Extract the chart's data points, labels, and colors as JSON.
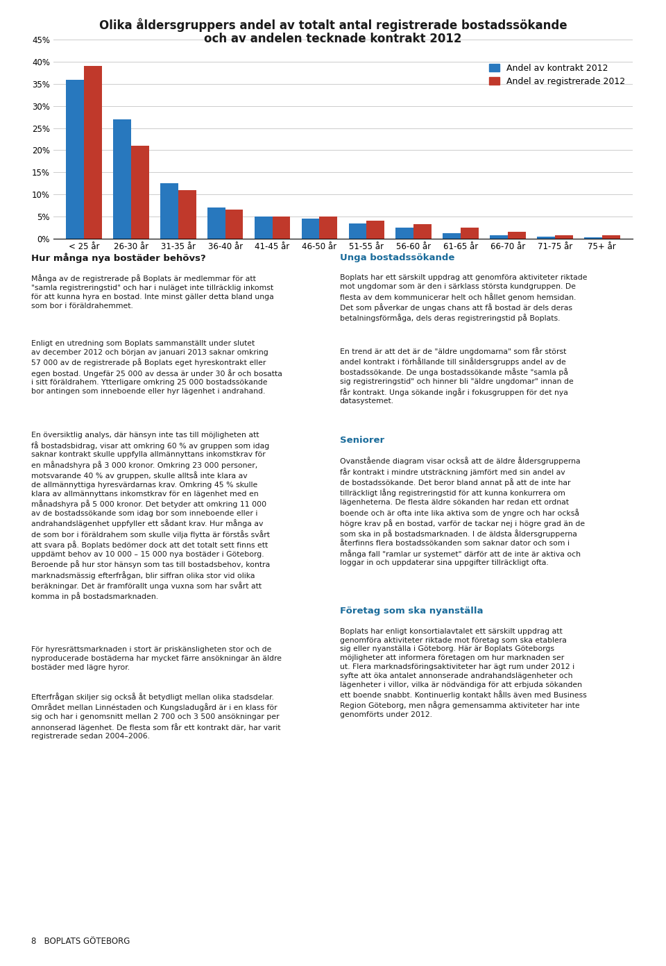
{
  "title_line1": "Olika åldersgruppers andel av totalt antal registrerade bostadssökande",
  "title_line2": "och av andelen tecknade kontrakt 2012",
  "categories": [
    "< 25 år",
    "26-30 år",
    "31-35 år",
    "36-40 år",
    "41-45 år",
    "46-50 år",
    "51-55 år",
    "56-60 år",
    "61-65 år",
    "66-70 år",
    "71-75 år",
    "75+ år"
  ],
  "blue_values": [
    36.0,
    27.0,
    12.5,
    7.0,
    5.0,
    4.5,
    3.5,
    2.5,
    1.2,
    0.8,
    0.4,
    0.3
  ],
  "red_values": [
    39.0,
    21.0,
    11.0,
    6.5,
    5.0,
    5.0,
    4.0,
    3.2,
    2.5,
    1.5,
    0.8,
    0.7
  ],
  "blue_color": "#2878BE",
  "red_color": "#C0392B",
  "legend_blue": "Andel av kontrakt 2012",
  "legend_red": "Andel av registrerade 2012",
  "yticks": [
    0,
    5,
    10,
    15,
    20,
    25,
    30,
    35,
    40,
    45
  ],
  "ylim": [
    0,
    47
  ],
  "background_color": "#FFFFFF",
  "grid_color": "#CCCCCC",
  "title_fontsize": 12,
  "axis_fontsize": 8.5,
  "legend_fontsize": 9,
  "left_heading": "Hur många nya bostäder behövs?",
  "left_body1": "Många av de registrerade på Boplats är medlemmar för att\n\"samla registreringstid\" och har i nuläget inte tillräcklig inkomst\nför att kunna hyra en bostad. Inte minst gäller detta bland unga\nsom bor i föräldrahemmet.",
  "left_body2": "Enligt en utredning som Boplats sammanställt under slutet\nav december 2012 och början av januari 2013 saknar omkring\n57 000 av de registrerade på Boplats eget hyreskontrakt eller\negen bostad. Ungefär 25 000 av dessa är under 30 år och bosatta\ni sitt föräldrahem. Ytterligare omkring 25 000 bostadssökande\nbor antingen som inneboende eller hyr lägenhet i andrahand.",
  "left_body3": "En översiktlig analys, där hänsyn inte tas till möjligheten att\nfå bostadsbidrag, visar att omkring 60 % av gruppen som idag\nsaknar kontrakt skulle uppfylla allmännyttans inkomstkrav för\nen månadshyra på 3 000 kronor. Omkring 23 000 personer,\nmotsvarande 40 % av gruppen, skulle alltså inte klara av\nde allmännyttiga hyresvärdarnas krav. Omkring 45 % skulle\nklara av allmännyttans inkomstkrav för en lägenhet med en\nmånadshyra på 5 000 kronor. Det betyder att omkring 11 000\nav de bostadssökande som idag bor som inneboende eller i\nandrahandslägenhet uppfyller ett sådant krav. Hur många av\nde som bor i föräldrahem som skulle vilja flytta är förstås svårt\natt svara på. Boplats bedömer dock att det totalt sett finns ett\nuppdämt behov av 10 000 – 15 000 nya bostäder i Göteborg.\nBeroende på hur stor hänsyn som tas till bostadsbehov, kontra\nmarknadsmässig efterfrågan, blir siffran olika stor vid olika\nberäkningar. Det är framförallt unga vuxna som har svårt att\nkomma in på bostadsmarknaden.",
  "left_body4": "För hyresrättsmarknaden i stort är priskänsligheten stor och de\nnyproducerade bostäderna har mycket färre ansökningar än äldre\nbostäder med lägre hyror.",
  "left_body5": "Efterfrågan skiljer sig också åt betydligt mellan olika stadsdelar.\nOmrådet mellan Linnéstaden och Kungsladugård är i en klass för\nsig och har i genomsnitt mellan 2 700 och 3 500 ansökningar per\nannonserad lägenhet. De flesta som får ett kontrakt där, har varit\nregistrerade sedan 2004–2006.",
  "right_heading1": "Unga bostadssökande",
  "right_body1": "Boplats har ett särskilt uppdrag att genomföra aktiviteter riktade\nmot ungdomar som är den i särklass största kundgruppen. De\nflesta av dem kommunicerar helt och hållet genom hemsidan.\nDet som påverkar de ungas chans att få bostad är dels deras\nbetalningsförmåga, dels deras registreringstid på Boplats.",
  "right_body2": "En trend är att det är de \"äldre ungdomarna\" som får störst\nandel kontrakt i förhållande till sinåldersgrupps andel av de\nbostadssökande. De unga bostadssökande måste \"samla på\nsig registreringstid\" och hinner bli \"äldre ungdomar\" innan de\nfår kontrakt. Unga sökande ingår i fokusgruppen för det nya\ndatasystemet.",
  "right_heading2": "Seniorer",
  "right_body3": "Ovanstående diagram visar också att de äldre åldersgrupperna\nfår kontrakt i mindre utsträckning jämfört med sin andel av\nde bostadssökande. Det beror bland annat på att de inte har\ntillräckligt lång registreringstid för att kunna konkurrera om\nlägenheterna. De flesta äldre sökanden har redan ett ordnat\nboende och är ofta inte lika aktiva som de yngre och har också\nhögre krav på en bostad, varför de tackar nej i högre grad än de\nsom ska in på bostadsmarknaden. I de äldsta åldersgrupperna\nåterfinns flera bostadssökanden som saknar dator och som i\nmånga fall \"ramlar ur systemet\" därför att de inte är aktiva och\nloggar in och uppdaterar sina uppgifter tillräckligt ofta.",
  "right_heading3": "Företag som ska nyanställa",
  "right_body4": "Boplats har enligt konsortialavtalet ett särskilt uppdrag att\ngenomföra aktiviteter riktade mot företag som ska etablera\nsig eller nyanställa i Göteborg. Här är Boplats Göteborgs\nmöjligheter att informera företagen om hur marknaden ser\nut. Flera marknadsföringsaktiviteter har ägt rum under 2012 i\nsyfte att öka antalet annonserade andrahandslägenheter och\nlägenheter i villor, vilka är nödvändiga för att erbjuda sökanden\nett boende snabbt. Kontinuerlig kontakt hålls även med Business\nRegion Göteborg, men några gemensamma aktiviteter har inte\ngenomförts under 2012.",
  "footer": "8   BOPLATS GÖTEBORG"
}
